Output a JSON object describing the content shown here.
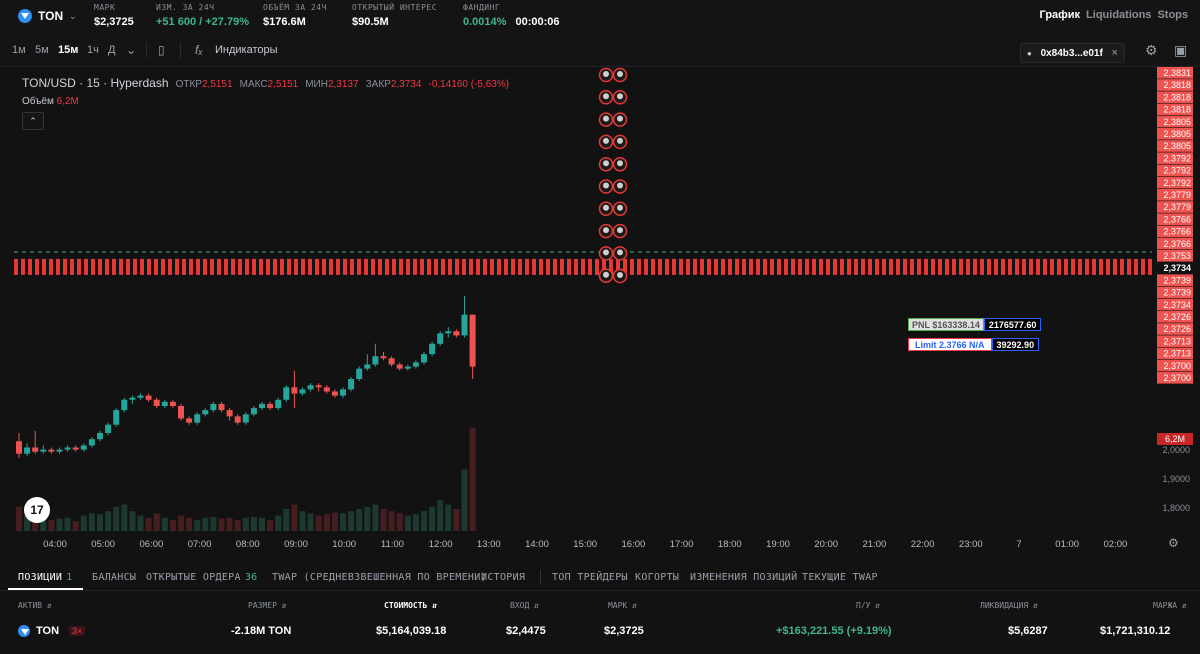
{
  "topbar": {
    "asset": "TON",
    "stats": [
      {
        "label": "МАРК",
        "value": "$2,3725",
        "tone": "white"
      },
      {
        "label": "ИЗМ. ЗА 24Ч",
        "value": "+51 600 / +27.79%",
        "tone": "green"
      },
      {
        "label": "ОБЪЁМ ЗА 24Ч",
        "value": "$176.6M",
        "tone": "white"
      },
      {
        "label": "ОТКРЫТЫЙ ИНТЕРЕС",
        "value": "$90.5M",
        "tone": "white"
      },
      {
        "label": "ФАНДИНГ",
        "value": "0.0014%",
        "tone": "green",
        "extra": "00:00:06"
      }
    ],
    "tabs": [
      "График",
      "Liquidations",
      "Stops"
    ],
    "active_tab": "График"
  },
  "toolbar": {
    "timeframes": [
      "1м",
      "5м",
      "15м",
      "1ч",
      "Д"
    ],
    "active_timeframe": "15м",
    "indicators_label": "Индикаторы",
    "wallet_address": "0x84b3...e01f"
  },
  "legend": {
    "symbol": "TON/USD · 15 · Hyperdash",
    "open_label": "ОТКР",
    "open": "2,5151",
    "high_label": "МАКС",
    "high": "2,5151",
    "low_label": "МИН",
    "low": "2,3137",
    "close_label": "ЗАКР",
    "close": "2,3734",
    "change": "-0,14160 (-5,63%)",
    "volume_label": "Объём",
    "volume": "6,2M"
  },
  "tooltips": {
    "pnl_label": "PNL $163338.14",
    "pnl_value": "2176577.60",
    "limit_label": "Limit 2.3766 N/A",
    "limit_value": "39292.90"
  },
  "chart_data": {
    "type": "candlestick",
    "price_axis_labels": [
      "2,3831",
      "2,3818",
      "2,3818",
      "2,3818",
      "2,3805",
      "2,3805",
      "2,3805",
      "2,3792",
      "2,3792",
      "2,3792",
      "2,3779",
      "2,3779",
      "2,3766",
      "2,3766",
      "2,3766",
      "2,3753",
      "2,3753",
      "2,3739",
      "2,3739",
      "2,3734",
      "2,3726",
      "2,3726",
      "2,3713",
      "2,3713",
      "2,3700",
      "2,3700"
    ],
    "current_price_label": "2,3734",
    "volume_label": "6,2M",
    "lower_axis_labels": [
      "2,0000",
      "1,9000",
      "1,8000"
    ],
    "time_labels": [
      "04:00",
      "05:00",
      "06:00",
      "07:00",
      "08:00",
      "09:00",
      "10:00",
      "11:00",
      "12:00",
      "13:00",
      "14:00",
      "15:00",
      "16:00",
      "17:00",
      "18:00",
      "19:00",
      "20:00",
      "21:00",
      "22:00",
      "23:00",
      "7",
      "01:00",
      "02:00"
    ],
    "y_range": [
      1.77,
      2.83
    ],
    "candles": [
      {
        "o": 1.95,
        "c": 1.92,
        "h": 1.97,
        "l": 1.91,
        "v": 0.55
      },
      {
        "o": 1.92,
        "c": 1.935,
        "h": 1.945,
        "l": 1.915,
        "v": 0.35
      },
      {
        "o": 1.935,
        "c": 1.925,
        "h": 1.975,
        "l": 1.92,
        "v": 0.4
      },
      {
        "o": 1.925,
        "c": 1.93,
        "h": 1.94,
        "l": 1.92,
        "v": 0.3
      },
      {
        "o": 1.93,
        "c": 1.925,
        "h": 1.935,
        "l": 1.92,
        "v": 0.25
      },
      {
        "o": 1.925,
        "c": 1.93,
        "h": 1.935,
        "l": 1.92,
        "v": 0.28
      },
      {
        "o": 1.93,
        "c": 1.935,
        "h": 1.94,
        "l": 1.925,
        "v": 0.3
      },
      {
        "o": 1.935,
        "c": 1.93,
        "h": 1.94,
        "l": 1.925,
        "v": 0.22
      },
      {
        "o": 1.93,
        "c": 1.94,
        "h": 1.945,
        "l": 1.925,
        "v": 0.35
      },
      {
        "o": 1.94,
        "c": 1.955,
        "h": 1.96,
        "l": 1.935,
        "v": 0.4
      },
      {
        "o": 1.955,
        "c": 1.97,
        "h": 1.975,
        "l": 1.95,
        "v": 0.38
      },
      {
        "o": 1.97,
        "c": 1.99,
        "h": 1.995,
        "l": 1.965,
        "v": 0.45
      },
      {
        "o": 1.99,
        "c": 2.025,
        "h": 2.03,
        "l": 1.985,
        "v": 0.55
      },
      {
        "o": 2.025,
        "c": 2.05,
        "h": 2.055,
        "l": 2.02,
        "v": 0.6
      },
      {
        "o": 2.05,
        "c": 2.055,
        "h": 2.06,
        "l": 2.04,
        "v": 0.45
      },
      {
        "o": 2.055,
        "c": 2.06,
        "h": 2.065,
        "l": 2.05,
        "v": 0.35
      },
      {
        "o": 2.06,
        "c": 2.05,
        "h": 2.065,
        "l": 2.045,
        "v": 0.3
      },
      {
        "o": 2.05,
        "c": 2.035,
        "h": 2.055,
        "l": 2.03,
        "v": 0.4
      },
      {
        "o": 2.035,
        "c": 2.045,
        "h": 2.05,
        "l": 2.03,
        "v": 0.3
      },
      {
        "o": 2.045,
        "c": 2.035,
        "h": 2.05,
        "l": 2.03,
        "v": 0.25
      },
      {
        "o": 2.035,
        "c": 2.005,
        "h": 2.04,
        "l": 2.0,
        "v": 0.35
      },
      {
        "o": 2.005,
        "c": 1.995,
        "h": 2.01,
        "l": 1.99,
        "v": 0.3
      },
      {
        "o": 1.995,
        "c": 2.015,
        "h": 2.02,
        "l": 1.99,
        "v": 0.25
      },
      {
        "o": 2.015,
        "c": 2.025,
        "h": 2.03,
        "l": 2.01,
        "v": 0.3
      },
      {
        "o": 2.025,
        "c": 2.04,
        "h": 2.045,
        "l": 2.02,
        "v": 0.32
      },
      {
        "o": 2.04,
        "c": 2.025,
        "h": 2.045,
        "l": 2.02,
        "v": 0.28
      },
      {
        "o": 2.025,
        "c": 2.01,
        "h": 2.03,
        "l": 2.0,
        "v": 0.3
      },
      {
        "o": 2.01,
        "c": 1.995,
        "h": 2.015,
        "l": 1.99,
        "v": 0.25
      },
      {
        "o": 1.995,
        "c": 2.015,
        "h": 2.02,
        "l": 1.99,
        "v": 0.3
      },
      {
        "o": 2.015,
        "c": 2.03,
        "h": 2.035,
        "l": 2.01,
        "v": 0.32
      },
      {
        "o": 2.03,
        "c": 2.04,
        "h": 2.045,
        "l": 2.025,
        "v": 0.3
      },
      {
        "o": 2.04,
        "c": 2.03,
        "h": 2.045,
        "l": 2.025,
        "v": 0.25
      },
      {
        "o": 2.03,
        "c": 2.05,
        "h": 2.055,
        "l": 2.025,
        "v": 0.35
      },
      {
        "o": 2.05,
        "c": 2.08,
        "h": 2.085,
        "l": 2.045,
        "v": 0.5
      },
      {
        "o": 2.08,
        "c": 2.065,
        "h": 2.12,
        "l": 2.03,
        "v": 0.6
      },
      {
        "o": 2.065,
        "c": 2.075,
        "h": 2.08,
        "l": 2.06,
        "v": 0.45
      },
      {
        "o": 2.075,
        "c": 2.085,
        "h": 2.09,
        "l": 2.07,
        "v": 0.4
      },
      {
        "o": 2.085,
        "c": 2.08,
        "h": 2.09,
        "l": 2.07,
        "v": 0.35
      },
      {
        "o": 2.08,
        "c": 2.07,
        "h": 2.085,
        "l": 2.065,
        "v": 0.38
      },
      {
        "o": 2.07,
        "c": 2.06,
        "h": 2.075,
        "l": 2.055,
        "v": 0.42
      },
      {
        "o": 2.06,
        "c": 2.075,
        "h": 2.08,
        "l": 2.055,
        "v": 0.4
      },
      {
        "o": 2.075,
        "c": 2.1,
        "h": 2.105,
        "l": 2.07,
        "v": 0.45
      },
      {
        "o": 2.1,
        "c": 2.125,
        "h": 2.13,
        "l": 2.095,
        "v": 0.5
      },
      {
        "o": 2.125,
        "c": 2.135,
        "h": 2.16,
        "l": 2.12,
        "v": 0.55
      },
      {
        "o": 2.135,
        "c": 2.155,
        "h": 2.185,
        "l": 2.13,
        "v": 0.6
      },
      {
        "o": 2.155,
        "c": 2.15,
        "h": 2.165,
        "l": 2.145,
        "v": 0.5
      },
      {
        "o": 2.15,
        "c": 2.135,
        "h": 2.155,
        "l": 2.13,
        "v": 0.45
      },
      {
        "o": 2.135,
        "c": 2.125,
        "h": 2.14,
        "l": 2.12,
        "v": 0.4
      },
      {
        "o": 2.125,
        "c": 2.13,
        "h": 2.135,
        "l": 2.12,
        "v": 0.35
      },
      {
        "o": 2.13,
        "c": 2.14,
        "h": 2.145,
        "l": 2.125,
        "v": 0.38
      },
      {
        "o": 2.14,
        "c": 2.16,
        "h": 2.165,
        "l": 2.135,
        "v": 0.45
      },
      {
        "o": 2.16,
        "c": 2.185,
        "h": 2.19,
        "l": 2.155,
        "v": 0.55
      },
      {
        "o": 2.185,
        "c": 2.21,
        "h": 2.215,
        "l": 2.18,
        "v": 0.7
      },
      {
        "o": 2.21,
        "c": 2.215,
        "h": 2.225,
        "l": 2.2,
        "v": 0.6
      },
      {
        "o": 2.215,
        "c": 2.205,
        "h": 2.22,
        "l": 2.2,
        "v": 0.5
      },
      {
        "o": 2.205,
        "c": 2.255,
        "h": 2.3,
        "l": 2.2,
        "v": 1.4
      },
      {
        "o": 2.255,
        "c": 2.13,
        "h": 2.255,
        "l": 2.1,
        "v": 2.35
      }
    ]
  },
  "liquidation_markers": 10,
  "bottom_tabs": [
    {
      "label": "ПОЗИЦИИ",
      "count": "1"
    },
    {
      "label": "БАЛАНСЫ"
    },
    {
      "label": "ОТКРЫТЫЕ ОРДЕРА",
      "count": "36"
    },
    {
      "label": "TWAP (СРЕДНЕВЗВЕШЕННАЯ ПО ВРЕМЕНИ)"
    },
    {
      "label": "ИСТОРИЯ"
    },
    {
      "label": "ТОП ТРЕЙДЕРЫ"
    },
    {
      "label": "КОГОРТЫ"
    },
    {
      "label": "ИЗМЕНЕНИЯ ПОЗИЦИЙ"
    },
    {
      "label": "ТЕКУЩИЕ TWAP"
    }
  ],
  "positions": {
    "headers": [
      "АКТИВ",
      "РАЗМЕР",
      "СТОИМОСТЬ",
      "ВХОД",
      "МАРК",
      "П/У",
      "ЛИКВИДАЦИЯ",
      "МАРЖА"
    ],
    "row": {
      "asset": "TON",
      "leverage": "3×",
      "size": "-2.18M TON",
      "value": "$5,164,039.18",
      "entry": "$2,4475",
      "mark": "$2,3725",
      "pnl": "+$163,221.55 (+9.19%)",
      "liquidation": "$5,6287",
      "margin": "$1,721,310.12"
    }
  },
  "colors": {
    "up": "#26a69a",
    "down": "#ef5350",
    "accent_green": "#3fb68b",
    "liq_red": "#f23645"
  }
}
